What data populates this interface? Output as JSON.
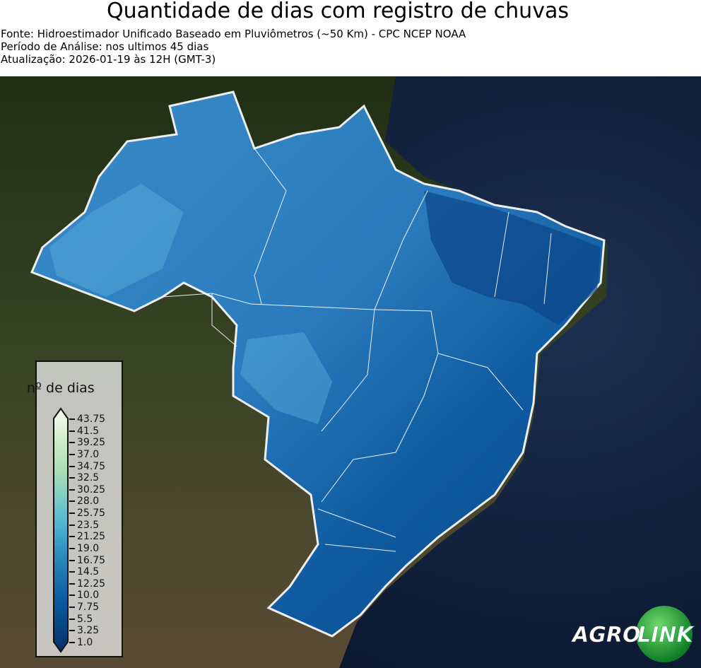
{
  "header": {
    "title": "Quantidade de dias com registro de chuvas",
    "source": "Fonte: Hidroestimador Unificado Baseado em Pluviômetros (~50 Km) - CPC NCEP NOAA",
    "period": "Período de Análise: nos ultimos 45 dias",
    "updated": "Atualização: 2026-01-19 às 12H (GMT-3)"
  },
  "map": {
    "region": "Brasil",
    "ocean_color": "#0b1a33",
    "land_color": "#3b4a2a",
    "boundary_color": "#f0f0f0"
  },
  "legend": {
    "title": "nº de dias",
    "ticks": [
      "43.75",
      "41.5",
      "39.25",
      "37.0",
      "34.75",
      "32.5",
      "30.25",
      "28.0",
      "25.75",
      "23.5",
      "21.25",
      "19.0",
      "16.75",
      "14.5",
      "12.25",
      "10.0",
      "7.75",
      "5.5",
      "3.25",
      "1.0"
    ],
    "colormap_low": "#08306b",
    "colormap_high": "#f7fcf0"
  },
  "logo": {
    "text_left": "AGRO",
    "text_right": "LINK"
  }
}
